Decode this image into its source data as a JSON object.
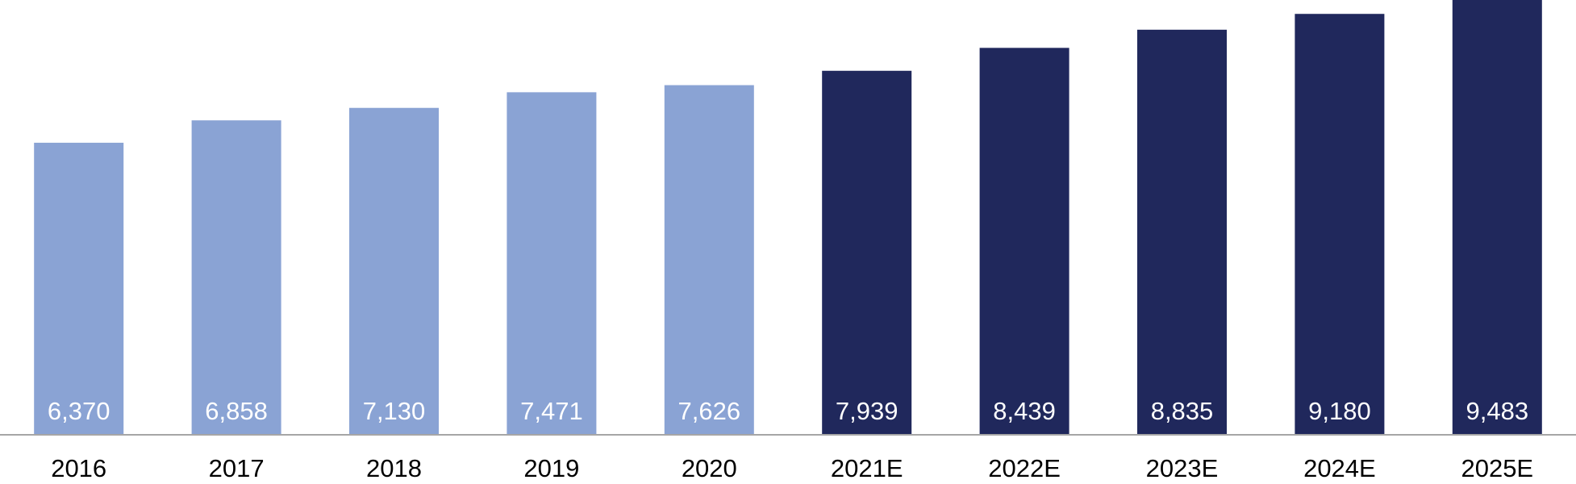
{
  "chart_data": {
    "type": "bar",
    "categories": [
      "2016",
      "2017",
      "2018",
      "2019",
      "2020",
      "2021E",
      "2022E",
      "2023E",
      "2024E",
      "2025E"
    ],
    "values": [
      6370,
      6858,
      7130,
      7471,
      7626,
      7939,
      8439,
      8835,
      9180,
      9483
    ],
    "value_labels": [
      "6,370",
      "6,858",
      "7,130",
      "7,471",
      "7,626",
      "7,939",
      "8,439",
      "8,835",
      "9,180",
      "9,483"
    ],
    "bar_colors": [
      "#8aa3d4",
      "#8aa3d4",
      "#8aa3d4",
      "#8aa3d4",
      "#8aa3d4",
      "#20285c",
      "#20285c",
      "#20285c",
      "#20285c",
      "#20285c"
    ],
    "title": "",
    "xlabel": "",
    "ylabel": "",
    "ylim": [
      0,
      9483
    ],
    "grid": false,
    "legend": "none",
    "data_label_position": "inside-base"
  },
  "colors": {
    "actual": "#8aa3d4",
    "estimate": "#20285c",
    "axis": "#a6a6a6",
    "label_text": "#ffffff",
    "tick_text": "#000000"
  }
}
